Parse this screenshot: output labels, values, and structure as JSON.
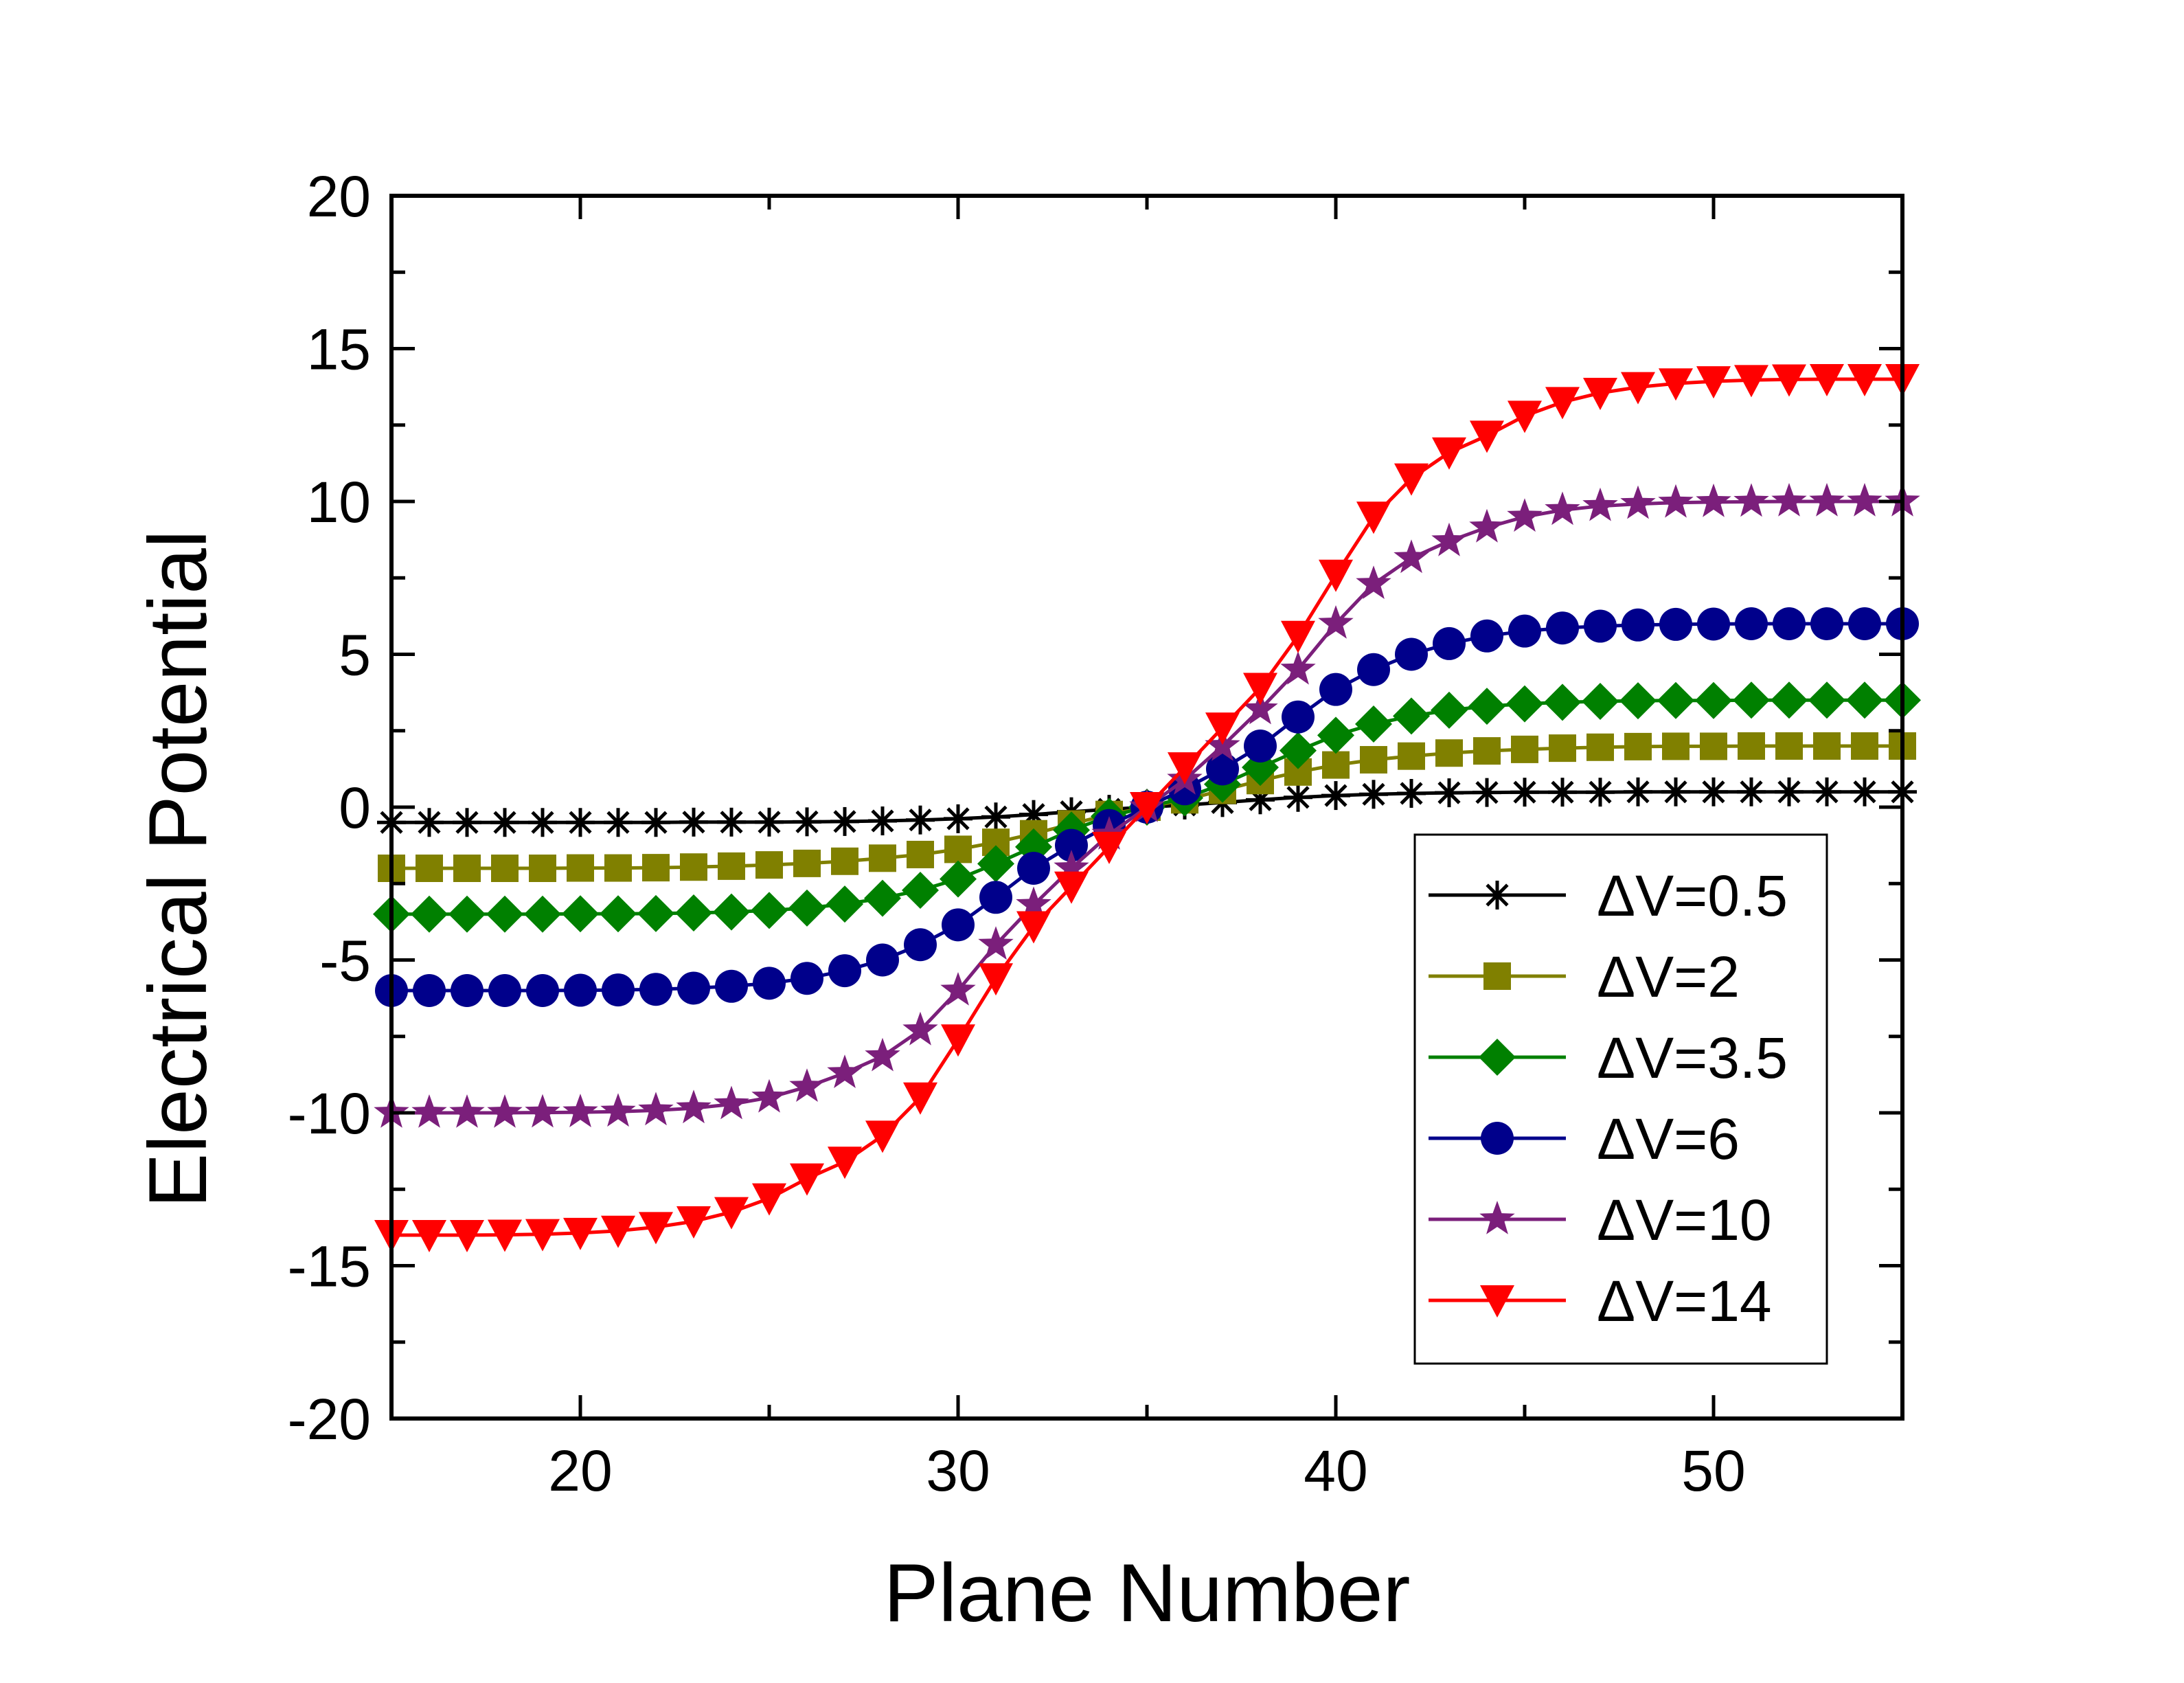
{
  "chart_data": {
    "type": "line",
    "title": "",
    "xlabel": "Plane Number",
    "ylabel": "Electrical Potential",
    "xlim": [
      15,
      55
    ],
    "ylim": [
      -20,
      20
    ],
    "xticks": [
      20,
      30,
      40,
      50
    ],
    "yticks": [
      -20,
      -15,
      -10,
      -5,
      0,
      5,
      10,
      15,
      20
    ],
    "xtick_labels": [
      "20",
      "30",
      "40",
      "50"
    ],
    "ytick_labels": [
      "-20",
      "-15",
      "-10",
      "-5",
      "0",
      "5",
      "10",
      "15",
      "20"
    ],
    "grid": false,
    "legend_position": "lower-right",
    "x": [
      15,
      16,
      17,
      18,
      19,
      20,
      21,
      22,
      23,
      24,
      25,
      26,
      27,
      28,
      29,
      30,
      31,
      32,
      33,
      34,
      35,
      36,
      37,
      38,
      39,
      40,
      41,
      42,
      43,
      44,
      45,
      46,
      47,
      48,
      49,
      50,
      51,
      52,
      53,
      54,
      55
    ],
    "series": [
      {
        "name": "ΔV=0.5",
        "color": "#000000",
        "marker": "asterisk",
        "values": [
          -0.5,
          -0.5,
          -0.5,
          -0.5,
          -0.5,
          -0.5,
          -0.5,
          -0.5,
          -0.49,
          -0.49,
          -0.49,
          -0.48,
          -0.47,
          -0.45,
          -0.42,
          -0.38,
          -0.32,
          -0.24,
          -0.15,
          -0.07,
          0.0,
          0.07,
          0.15,
          0.24,
          0.32,
          0.38,
          0.42,
          0.45,
          0.47,
          0.48,
          0.49,
          0.49,
          0.49,
          0.5,
          0.5,
          0.5,
          0.5,
          0.5,
          0.5,
          0.5,
          0.5
        ]
      },
      {
        "name": "ΔV=2",
        "color": "#808000",
        "marker": "square",
        "values": [
          -2.0,
          -2.0,
          -2.0,
          -2.0,
          -2.0,
          -1.99,
          -1.99,
          -1.98,
          -1.96,
          -1.93,
          -1.89,
          -1.84,
          -1.77,
          -1.67,
          -1.55,
          -1.38,
          -1.15,
          -0.87,
          -0.55,
          -0.24,
          0.0,
          0.24,
          0.55,
          0.87,
          1.15,
          1.38,
          1.55,
          1.67,
          1.77,
          1.84,
          1.89,
          1.93,
          1.96,
          1.98,
          1.99,
          1.99,
          2.0,
          2.0,
          2.0,
          2.0,
          2.0
        ]
      },
      {
        "name": "ΔV=3.5",
        "color": "#008000",
        "marker": "diamond",
        "values": [
          -3.5,
          -3.5,
          -3.5,
          -3.5,
          -3.5,
          -3.49,
          -3.49,
          -3.48,
          -3.46,
          -3.43,
          -3.38,
          -3.3,
          -3.17,
          -2.98,
          -2.72,
          -2.35,
          -1.85,
          -1.3,
          -0.75,
          -0.3,
          0.0,
          0.3,
          0.75,
          1.3,
          1.85,
          2.35,
          2.72,
          2.98,
          3.17,
          3.3,
          3.38,
          3.43,
          3.46,
          3.48,
          3.49,
          3.49,
          3.5,
          3.5,
          3.5,
          3.5,
          3.5
        ]
      },
      {
        "name": "ΔV=6",
        "color": "#00008B",
        "marker": "circle",
        "values": [
          -6.0,
          -6.0,
          -6.0,
          -6.0,
          -6.0,
          -5.99,
          -5.98,
          -5.96,
          -5.92,
          -5.86,
          -5.76,
          -5.6,
          -5.35,
          -5.0,
          -4.5,
          -3.85,
          -2.95,
          -2.0,
          -1.25,
          -0.6,
          0.0,
          0.6,
          1.25,
          2.0,
          2.95,
          3.85,
          4.5,
          5.0,
          5.35,
          5.6,
          5.76,
          5.86,
          5.92,
          5.96,
          5.98,
          5.99,
          6.0,
          6.0,
          6.0,
          6.0,
          6.0
        ]
      },
      {
        "name": "ΔV=10",
        "color": "#7B1F7B",
        "marker": "star",
        "values": [
          -10.0,
          -10.0,
          -10.0,
          -10.0,
          -9.99,
          -9.98,
          -9.96,
          -9.92,
          -9.85,
          -9.72,
          -9.5,
          -9.15,
          -8.7,
          -8.15,
          -7.3,
          -6.0,
          -4.5,
          -3.2,
          -2.0,
          -0.9,
          0.0,
          0.9,
          2.0,
          3.2,
          4.5,
          6.0,
          7.3,
          8.15,
          8.7,
          9.15,
          9.5,
          9.72,
          9.85,
          9.92,
          9.96,
          9.98,
          9.99,
          10.0,
          10.0,
          10.0,
          10.0
        ]
      },
      {
        "name": "ΔV=14",
        "color": "#FF0000",
        "marker": "triangle-down",
        "values": [
          -14.0,
          -14.0,
          -14.0,
          -13.99,
          -13.97,
          -13.93,
          -13.86,
          -13.74,
          -13.55,
          -13.25,
          -12.8,
          -12.15,
          -11.6,
          -10.75,
          -9.5,
          -7.6,
          -5.6,
          -3.9,
          -2.6,
          -1.3,
          0.0,
          1.3,
          2.6,
          3.9,
          5.6,
          7.6,
          9.5,
          10.75,
          11.6,
          12.15,
          12.8,
          13.25,
          13.55,
          13.74,
          13.86,
          13.93,
          13.97,
          13.99,
          14.0,
          14.0,
          14.0
        ]
      }
    ]
  }
}
